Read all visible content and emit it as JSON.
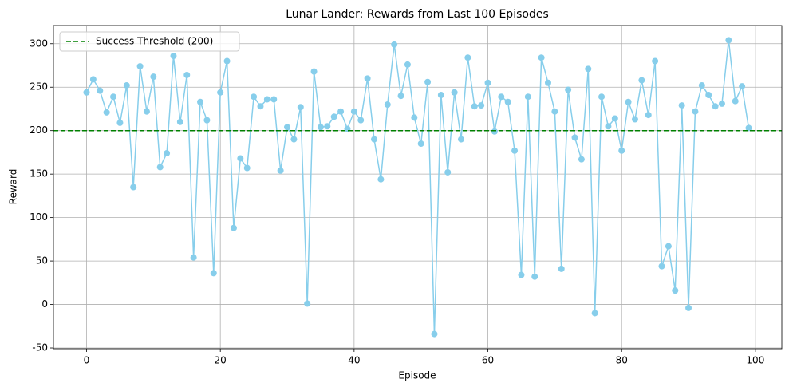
{
  "chart_data": {
    "type": "line",
    "title": "Lunar Lander: Rewards from Last 100 Episodes",
    "x_label": "Episode",
    "y_label": "Reward",
    "x": [
      0,
      1,
      2,
      3,
      4,
      5,
      6,
      7,
      8,
      9,
      10,
      11,
      12,
      13,
      14,
      15,
      16,
      17,
      18,
      19,
      20,
      21,
      22,
      23,
      24,
      25,
      26,
      27,
      28,
      29,
      30,
      31,
      32,
      33,
      34,
      35,
      36,
      37,
      38,
      39,
      40,
      41,
      42,
      43,
      44,
      45,
      46,
      47,
      48,
      49,
      50,
      51,
      52,
      53,
      54,
      55,
      56,
      57,
      58,
      59,
      60,
      61,
      62,
      63,
      64,
      65,
      66,
      67,
      68,
      69,
      70,
      71,
      72,
      73,
      74,
      75,
      76,
      77,
      78,
      79,
      80,
      81,
      82,
      83,
      84,
      85,
      86,
      87,
      88,
      89,
      90,
      91,
      92,
      93,
      94,
      95,
      96,
      97,
      98,
      99
    ],
    "series": [
      {
        "color": "#87ceeb",
        "values": [
          244,
          259,
          246,
          221,
          239,
          209,
          252,
          135,
          274,
          222,
          262,
          158,
          174,
          286,
          210,
          264,
          54,
          233,
          212,
          36,
          244,
          280,
          88,
          168,
          157,
          239,
          228,
          236,
          236,
          154,
          204,
          190,
          227,
          1,
          268,
          204,
          205,
          216,
          222,
          202,
          222,
          212,
          260,
          190,
          144,
          230,
          299,
          240,
          276,
          215,
          185,
          256,
          -34,
          241,
          152,
          244,
          190,
          284,
          228,
          229,
          255,
          199,
          239,
          233,
          177,
          34,
          239,
          32,
          284,
          255,
          222,
          41,
          247,
          192,
          167,
          271,
          -10,
          239,
          205,
          214,
          177,
          233,
          213,
          258,
          218,
          280,
          44,
          67,
          16,
          229,
          -4,
          222,
          252,
          241,
          228,
          231,
          304,
          234,
          251,
          203
        ]
      }
    ],
    "threshold": {
      "name": "Success Threshold (200)",
      "value": 200,
      "color": "#008000"
    },
    "xlim": [
      -4.95,
      103.95
    ],
    "xticks": [
      0,
      20,
      40,
      60,
      80,
      100
    ],
    "ylim": [
      -50.9,
      320.9
    ],
    "yticks": [
      -50,
      0,
      50,
      100,
      150,
      200,
      250,
      300
    ],
    "grid": true,
    "legend": "upper left"
  }
}
